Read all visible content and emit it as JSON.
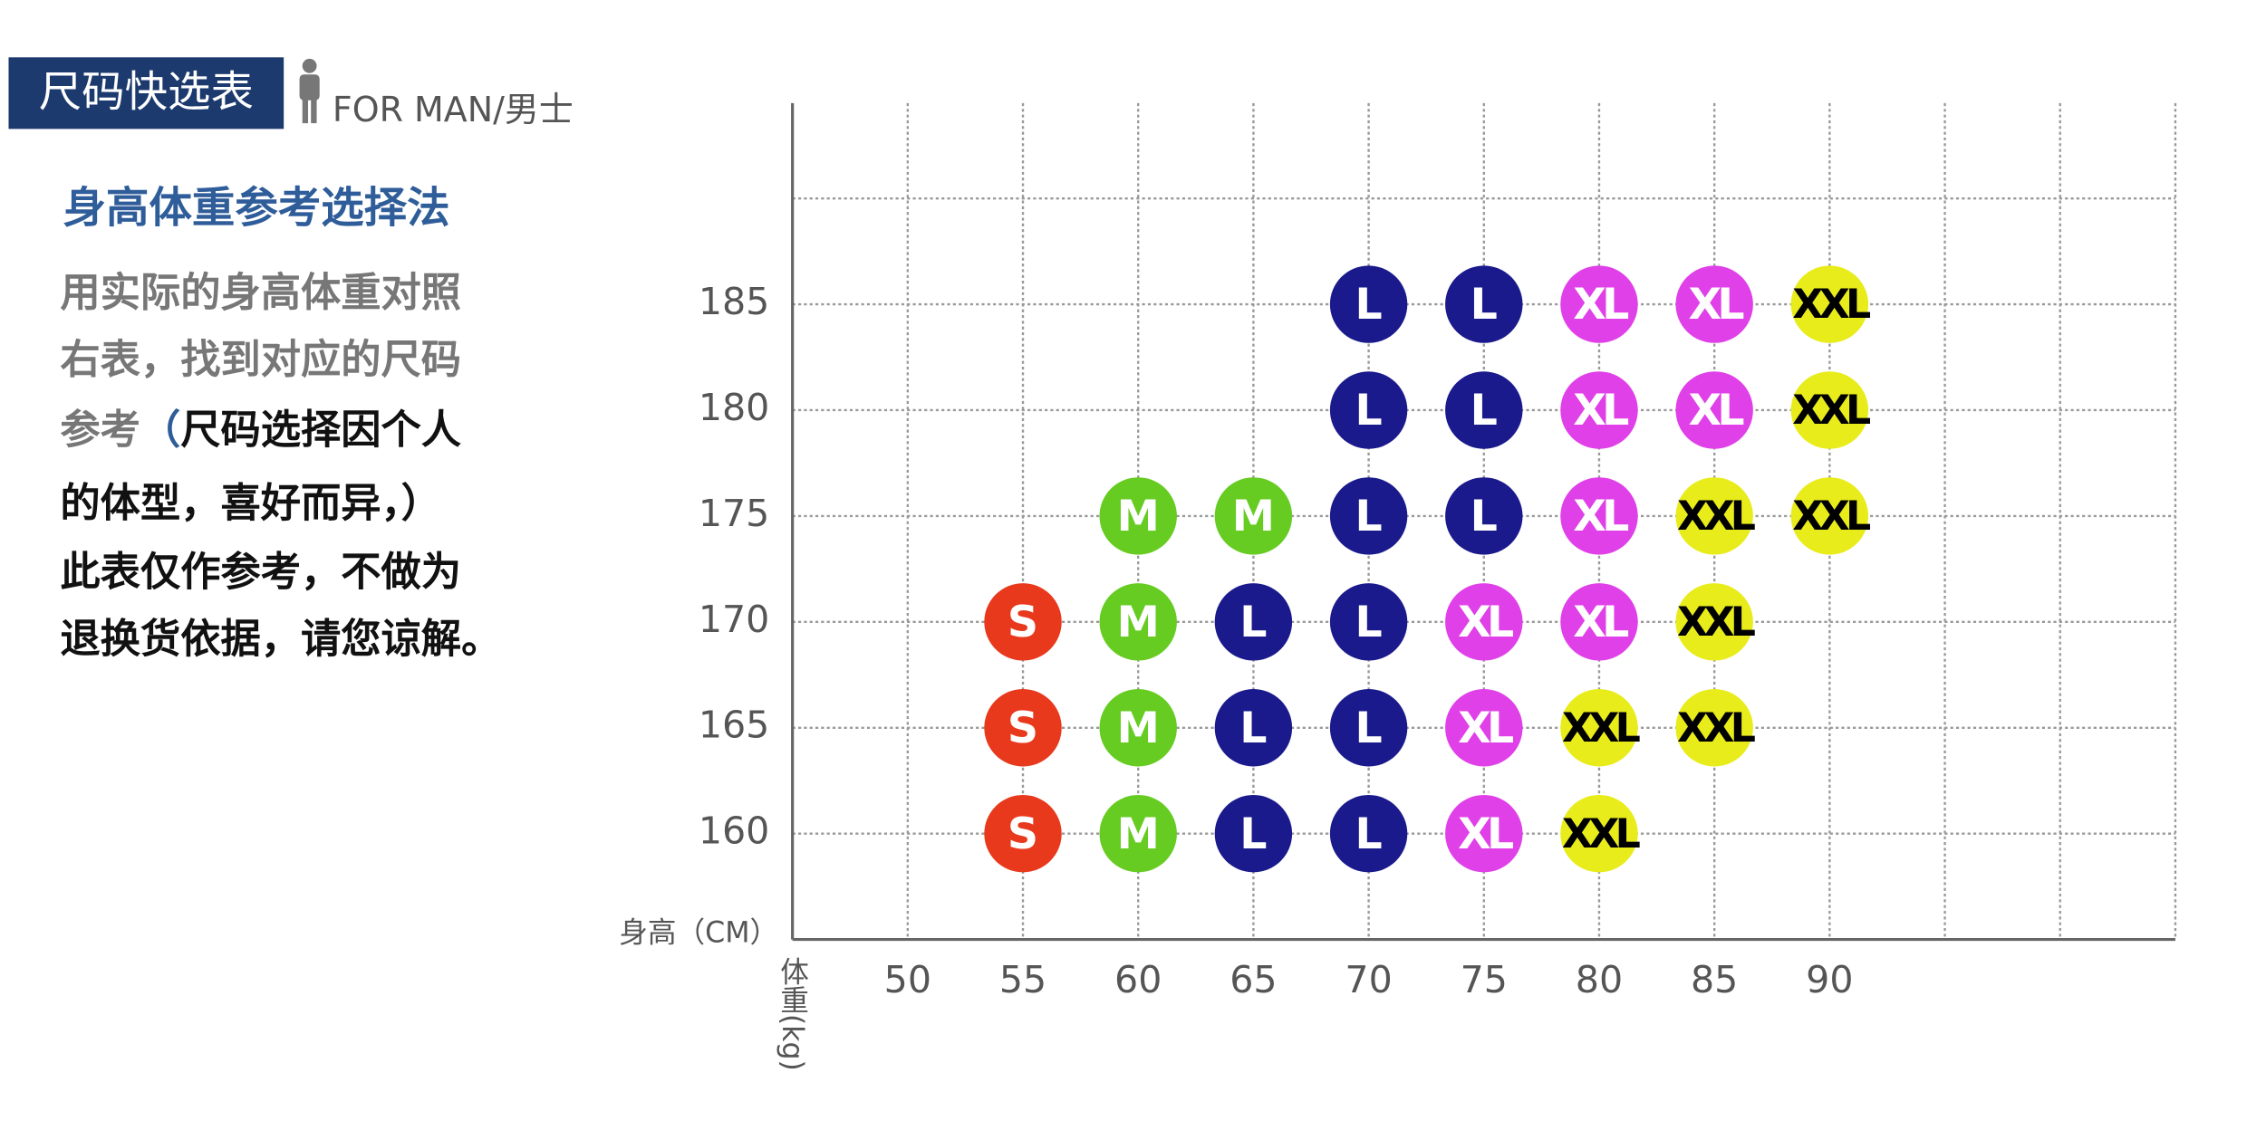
{
  "header": {
    "badge": "尺码快选表",
    "subtitle": "FOR MAN/男士"
  },
  "sidebar": {
    "heading": "身高体重参考选择法",
    "lines": [
      [
        "用实际的身高体重对照"
      ],
      [
        "右表，找到对应的尺码"
      ],
      [
        "参考",
        "（",
        "尺码选择因个人"
      ],
      [
        "的体型，喜好而异，）"
      ],
      [
        "此表仅作参考，不做为"
      ],
      [
        "退换货依据，请您谅解。"
      ]
    ]
  },
  "chart_data": {
    "type": "scatter",
    "xlabel": "体重(kg)",
    "ylabel": "身高（CM）",
    "xlim": [
      45,
      105
    ],
    "ylim": [
      155,
      194.5
    ],
    "xticks": [
      50,
      55,
      60,
      65,
      70,
      75,
      80,
      85,
      90
    ],
    "yticks": [
      160,
      165,
      170,
      175,
      180,
      185
    ],
    "xgrid": [
      50,
      55,
      60,
      65,
      70,
      75,
      80,
      85,
      90,
      95,
      100,
      105
    ],
    "ygrid": [
      160,
      165,
      170,
      175,
      180,
      185,
      190
    ],
    "grid": true,
    "series": [
      {
        "name": "S",
        "color": "#e8391d",
        "text_color": "#ffffff",
        "x": [
          55,
          55,
          55
        ],
        "values": [
          170,
          165,
          160
        ]
      },
      {
        "name": "M",
        "color": "#66cc22",
        "text_color": "#ffffff",
        "x": [
          60,
          65,
          60,
          60,
          60
        ],
        "values": [
          175,
          175,
          170,
          165,
          160
        ]
      },
      {
        "name": "L",
        "color": "#1a1a8c",
        "text_color": "#ffffff",
        "x": [
          70,
          75,
          70,
          75,
          70,
          75,
          65,
          70,
          65,
          70,
          65,
          70
        ],
        "values": [
          185,
          185,
          180,
          180,
          175,
          175,
          170,
          170,
          165,
          165,
          160,
          160
        ]
      },
      {
        "name": "XL",
        "color": "#e040e8",
        "text_color": "#ffffff",
        "x": [
          80,
          85,
          80,
          85,
          80,
          75,
          80,
          75,
          75
        ],
        "values": [
          185,
          185,
          180,
          180,
          175,
          170,
          170,
          165,
          160
        ]
      },
      {
        "name": "XXL",
        "color": "#e8ec1a",
        "text_color": "#000000",
        "x": [
          90,
          90,
          85,
          90,
          85,
          80,
          85,
          80
        ],
        "values": [
          185,
          180,
          175,
          175,
          170,
          165,
          165,
          160
        ]
      }
    ]
  }
}
